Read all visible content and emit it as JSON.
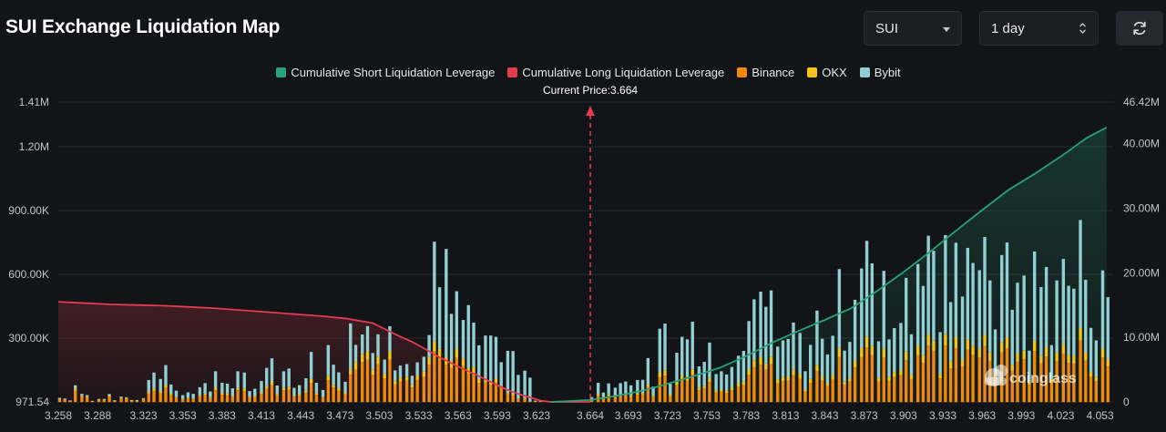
{
  "header": {
    "title": "SUI Exchange Liquidation Map",
    "coin_select": "SUI",
    "period_select": "1 day"
  },
  "icons": {
    "coin_caret": "chevron-down-icon",
    "period_caret": "up-down-icon",
    "refresh": "refresh-icon",
    "watermark": "coinglass-logo"
  },
  "watermark": "coinglass",
  "legend": [
    {
      "name": "Cumulative Short Liquidation Leverage",
      "color": "#26a17b"
    },
    {
      "name": "Cumulative Long Liquidation Leverage",
      "color": "#e23c4f"
    },
    {
      "name": "Binance",
      "color": "#ef8a0c"
    },
    {
      "name": "OKX",
      "color": "#f2c418"
    },
    {
      "name": "Bybit",
      "color": "#92cfd2"
    }
  ],
  "chart_data": {
    "type": "bar",
    "current_price": 3.664,
    "current_price_label": "Current Price:3.664",
    "x_range": [
      3.258,
      4.063
    ],
    "x_ticks": [
      "3.258",
      "3.288",
      "3.323",
      "3.353",
      "3.383",
      "3.413",
      "3.443",
      "3.473",
      "3.503",
      "3.533",
      "3.563",
      "3.593",
      "3.623",
      "3.664",
      "3.693",
      "3.723",
      "3.753",
      "3.783",
      "3.813",
      "3.843",
      "3.873",
      "3.903",
      "3.933",
      "3.963",
      "3.993",
      "4.023",
      "4.053"
    ],
    "y_left": {
      "ticks": [
        {
          "value": 971.54,
          "label": "971.54"
        },
        {
          "value": 300000,
          "label": "300.00K"
        },
        {
          "value": 600000,
          "label": "600.00K"
        },
        {
          "value": 900000,
          "label": "900.00K"
        },
        {
          "value": 1200000,
          "label": "1.20M"
        },
        {
          "value": 1410000,
          "label": "1.41M"
        }
      ],
      "range": [
        971.54,
        1410000
      ]
    },
    "y_right": {
      "ticks": [
        {
          "value": 0,
          "label": "0"
        },
        {
          "value": 10000000,
          "label": "10.00M"
        },
        {
          "value": 20000000,
          "label": "20.00M"
        },
        {
          "value": 30000000,
          "label": "30.00M"
        },
        {
          "value": 40000000,
          "label": "40.00M"
        },
        {
          "value": 46420000,
          "label": "46.42M"
        }
      ],
      "range": [
        0,
        46420000
      ]
    },
    "grid": true,
    "legend_position": "top-center",
    "bars": {
      "x": [
        3.259,
        3.263,
        3.267,
        3.271,
        3.276,
        3.28,
        3.284,
        3.289,
        3.293,
        3.297,
        3.301,
        3.306,
        3.31,
        3.314,
        3.318,
        3.323,
        3.327,
        3.331,
        3.336,
        3.34,
        3.344,
        3.348,
        3.353,
        3.357,
        3.361,
        3.366,
        3.37,
        3.374,
        3.378,
        3.383,
        3.387,
        3.391,
        3.395,
        3.4,
        3.404,
        3.408,
        3.413,
        3.417,
        3.421,
        3.425,
        3.43,
        3.434,
        3.438,
        3.442,
        3.447,
        3.451,
        3.455,
        3.46,
        3.464,
        3.468,
        3.472,
        3.477,
        3.481,
        3.485,
        3.49,
        3.494,
        3.498,
        3.502,
        3.507,
        3.511,
        3.515,
        3.519,
        3.524,
        3.528,
        3.532,
        3.537,
        3.541,
        3.545,
        3.549,
        3.554,
        3.558,
        3.562,
        3.567,
        3.571,
        3.575,
        3.579,
        3.584,
        3.588,
        3.592,
        3.596,
        3.601,
        3.605,
        3.609,
        3.614,
        3.618,
        3.622,
        3.626,
        3.665,
        3.67,
        3.674,
        3.678,
        3.683,
        3.687,
        3.691,
        3.695,
        3.7,
        3.704,
        3.708,
        3.712,
        3.717,
        3.721,
        3.725,
        3.73,
        3.734,
        3.738,
        3.742,
        3.747,
        3.751,
        3.755,
        3.76,
        3.764,
        3.768,
        3.772,
        3.777,
        3.781,
        3.785,
        3.789,
        3.794,
        3.798,
        3.802,
        3.807,
        3.811,
        3.815,
        3.819,
        3.824,
        3.828,
        3.832,
        3.837,
        3.841,
        3.845,
        3.849,
        3.854,
        3.858,
        3.862,
        3.866,
        3.871,
        3.875,
        3.879,
        3.884,
        3.888,
        3.892,
        3.896,
        3.901,
        3.905,
        3.909,
        3.914,
        3.918,
        3.922,
        3.926,
        3.931,
        3.935,
        3.939,
        3.943,
        3.948,
        3.952,
        3.956,
        3.961,
        3.965,
        3.969,
        3.973,
        3.978,
        3.982,
        3.986,
        3.99,
        3.995,
        3.999,
        4.003,
        4.008,
        4.012,
        4.016,
        4.02,
        4.025,
        4.029,
        4.033,
        4.038,
        4.042,
        4.046,
        4.05,
        4.055,
        4.059
      ],
      "binance": [
        14000,
        12000,
        6000,
        54000,
        27000,
        23000,
        4000,
        10000,
        10000,
        26000,
        6000,
        18000,
        16000,
        7000,
        7000,
        13000,
        40000,
        53000,
        42000,
        67000,
        32000,
        21000,
        13000,
        18000,
        15000,
        27000,
        34000,
        19000,
        56000,
        35000,
        33000,
        25000,
        56000,
        53000,
        20000,
        24000,
        38000,
        62000,
        79000,
        30000,
        56000,
        61000,
        26000,
        31000,
        43000,
        91000,
        35000,
        22000,
        103000,
        68000,
        54000,
        37000,
        129000,
        153000,
        189000,
        199000,
        128000,
        178000,
        112000,
        199000,
        83000,
        96000,
        100000,
        69000,
        104000,
        119000,
        176000,
        239000,
        208000,
        176000,
        161000,
        209000,
        170000,
        134000,
        138000,
        90000,
        93000,
        81000,
        92000,
        64000,
        36000,
        31000,
        15000,
        16000,
        3000,
        5000,
        3000,
        8000,
        31000,
        15000,
        30000,
        23000,
        30000,
        33000,
        27000,
        35000,
        36000,
        70000,
        25000,
        117000,
        125000,
        29000,
        79000,
        104000,
        100000,
        128000,
        57000,
        64000,
        95000,
        45000,
        49000,
        44000,
        56000,
        74000,
        82000,
        129000,
        164000,
        176000,
        152000,
        178000,
        88000,
        98000,
        101000,
        127000,
        110000,
        49000,
        91000,
        146000,
        101000,
        76000,
        106000,
        212000,
        82000,
        96000,
        163000,
        213000,
        257000,
        221000,
        97000,
        209000,
        100000,
        118000,
        126000,
        198000,
        108000,
        220000,
        185000,
        265000,
        241000,
        112000,
        266000,
        159000,
        254000,
        168000,
        246000,
        222000,
        210000,
        263000,
        194000,
        116000,
        234000,
        254000,
        147000,
        190000,
        202000,
        82000,
        240000,
        183000,
        215000,
        91000,
        194000,
        228000,
        185000,
        181000,
        290000,
        195000,
        118000,
        98000,
        210000,
        167000,
        163000,
        231000,
        192000,
        177000,
        168000
      ],
      "okx": [
        2000,
        2000,
        1000,
        10000,
        5000,
        4000,
        1000,
        2000,
        2000,
        5000,
        1000,
        3000,
        3000,
        1000,
        1000,
        2000,
        8000,
        11000,
        8000,
        13000,
        6000,
        4000,
        2000,
        3000,
        3000,
        5000,
        7000,
        4000,
        11000,
        7000,
        7000,
        5000,
        11000,
        11000,
        4000,
        5000,
        8000,
        12000,
        16000,
        6000,
        11000,
        12000,
        5000,
        6000,
        9000,
        18000,
        7000,
        4000,
        21000,
        13000,
        11000,
        7000,
        26000,
        36000,
        38000,
        40000,
        26000,
        36000,
        22000,
        40000,
        17000,
        19000,
        20000,
        14000,
        21000,
        24000,
        35000,
        48000,
        42000,
        35000,
        32000,
        42000,
        34000,
        27000,
        28000,
        18000,
        19000,
        16000,
        18000,
        13000,
        7000,
        6000,
        3000,
        3000,
        1000,
        1000,
        1000,
        2000,
        6000,
        3000,
        6000,
        5000,
        6000,
        7000,
        5000,
        7000,
        7000,
        14000,
        5000,
        23000,
        25000,
        6000,
        16000,
        21000,
        20000,
        26000,
        11000,
        13000,
        19000,
        9000,
        10000,
        9000,
        11000,
        15000,
        16000,
        26000,
        33000,
        35000,
        30000,
        36000,
        18000,
        20000,
        20000,
        25000,
        22000,
        10000,
        18000,
        29000,
        20000,
        15000,
        21000,
        42000,
        16000,
        19000,
        33000,
        43000,
        51000,
        44000,
        19000,
        42000,
        20000,
        24000,
        25000,
        40000,
        22000,
        44000,
        37000,
        53000,
        48000,
        22000,
        53000,
        32000,
        51000,
        34000,
        49000,
        44000,
        42000,
        53000,
        39000,
        23000,
        47000,
        51000,
        29000,
        38000,
        40000,
        16000,
        48000,
        37000,
        43000,
        18000,
        39000,
        46000,
        37000,
        36000,
        58000,
        39000,
        24000,
        20000,
        42000,
        33000,
        33000,
        46000,
        38000,
        35000,
        34000
      ],
      "bybit": [
        4000,
        3000,
        1000,
        15000,
        7000,
        6000,
        1000,
        3000,
        3000,
        7000,
        2000,
        5000,
        4000,
        2000,
        2000,
        4000,
        56000,
        75000,
        59000,
        94000,
        45000,
        29000,
        18000,
        25000,
        21000,
        38000,
        48000,
        27000,
        78000,
        49000,
        47000,
        35000,
        78000,
        75000,
        28000,
        34000,
        53000,
        87000,
        111000,
        42000,
        78000,
        85000,
        36000,
        43000,
        60000,
        127000,
        49000,
        31000,
        144000,
        95000,
        75000,
        52000,
        215000,
        80000,
        91000,
        118000,
        77000,
        105000,
        66000,
        118000,
        49000,
        57000,
        59000,
        41000,
        62000,
        70000,
        104000,
        467000,
        290000,
        509000,
        222000,
        270000,
        182000,
        295000,
        208000,
        159000,
        201000,
        216000,
        197000,
        111000,
        198000,
        203000,
        110000,
        129000,
        111000,
        1000,
        1000,
        14000,
        54000,
        27000,
        52000,
        40000,
        53000,
        57000,
        47000,
        62000,
        62000,
        123000,
        43000,
        205000,
        219000,
        51000,
        137000,
        182000,
        175000,
        224000,
        100000,
        112000,
        166000,
        78000,
        86000,
        77000,
        98000,
        129000,
        143000,
        226000,
        286000,
        308000,
        266000,
        311000,
        155000,
        172000,
        176000,
        222000,
        193000,
        86000,
        160000,
        255000,
        177000,
        133000,
        185000,
        371000,
        144000,
        168000,
        285000,
        372000,
        450000,
        387000,
        170000,
        366000,
        175000,
        206000,
        221000,
        346000,
        189000,
        385000,
        324000,
        464000,
        422000,
        195000,
        466000,
        279000,
        444000,
        294000,
        430000,
        388000,
        368000,
        460000,
        339000,
        203000,
        410000,
        445000,
        258000,
        333000,
        353000,
        144000,
        420000,
        321000,
        377000,
        159000,
        339000,
        399000,
        325000,
        316000,
        508000,
        341000,
        207000,
        172000,
        367000,
        293000,
        286000,
        405000,
        336000,
        310000,
        295000
      ]
    },
    "long_cumulative": {
      "x": [
        3.258,
        3.278,
        3.298,
        3.318,
        3.338,
        3.358,
        3.378,
        3.398,
        3.418,
        3.438,
        3.458,
        3.478,
        3.498,
        3.508,
        3.518,
        3.528,
        3.538,
        3.548,
        3.558,
        3.568,
        3.578,
        3.588,
        3.598,
        3.608,
        3.618,
        3.626,
        3.634,
        3.664
      ],
      "values": [
        15500000,
        15300000,
        15100000,
        15000000,
        14900000,
        14700000,
        14500000,
        14200000,
        13900000,
        13600000,
        13300000,
        12900000,
        12200000,
        11200000,
        10200000,
        9300000,
        8200000,
        7000000,
        6000000,
        5000000,
        4100000,
        3100000,
        2100000,
        1300000,
        700000,
        200000,
        0,
        0
      ]
    },
    "short_cumulative": {
      "x": [
        3.634,
        3.664,
        3.683,
        3.703,
        3.723,
        3.743,
        3.763,
        3.783,
        3.803,
        3.823,
        3.843,
        3.863,
        3.883,
        3.903,
        3.923,
        3.943,
        3.963,
        3.983,
        4.003,
        4.023,
        4.043,
        4.058
      ],
      "values": [
        0,
        300000,
        900000,
        1700000,
        2800000,
        4000000,
        5300000,
        7100000,
        9200000,
        11000000,
        12700000,
        14500000,
        17200000,
        20100000,
        23200000,
        26500000,
        29700000,
        32800000,
        35300000,
        38000000,
        40900000,
        42500000
      ]
    }
  }
}
